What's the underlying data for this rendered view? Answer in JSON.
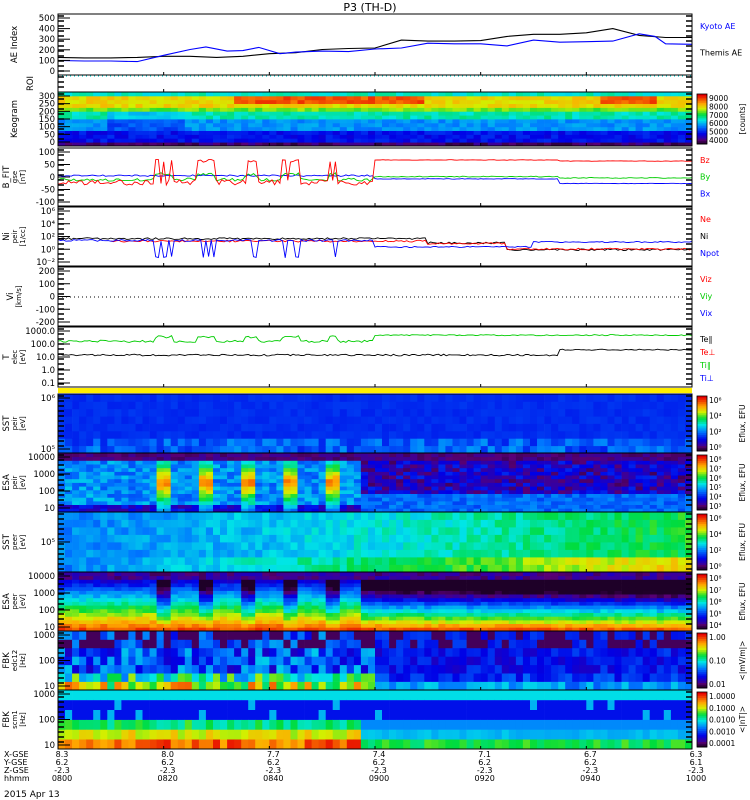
{
  "title": "P3 (TH-D)",
  "chart_data": {
    "type": "multi-panel time series and spectrogram",
    "title": "P3 (TH-D)",
    "date": "2015 Apr 13",
    "time_range_min": [
      0,
      120
    ],
    "panels": [
      {
        "id": "ae",
        "label": [
          "AE Index"
        ],
        "yticks": [
          "500",
          "400",
          "300",
          "200",
          "100",
          "0"
        ],
        "ylim": [
          -25,
          525
        ],
        "legend": [
          {
            "name": "Kyoto AE",
            "color": "#0000ff"
          },
          {
            "name": "Themis AE",
            "color": "#000000"
          }
        ],
        "series": [
          {
            "name": "Themis AE",
            "color": "#000000",
            "t": [
              0,
              5,
              10,
              15,
              20,
              25,
              30,
              35,
              40,
              45,
              50,
              55,
              60,
              65,
              70,
              75,
              80,
              85,
              90,
              95,
              100,
              105,
              110,
              115,
              120
            ],
            "values": [
              130,
              125,
              125,
              130,
              140,
              140,
              130,
              140,
              165,
              175,
              205,
              215,
              220,
              295,
              285,
              285,
              290,
              330,
              350,
              350,
              365,
              405,
              340,
              320,
              320
            ]
          },
          {
            "name": "Kyoto AE",
            "color": "#0000ff",
            "t": [
              0,
              5,
              10,
              15,
              20,
              25,
              28,
              32,
              35,
              38,
              42,
              45,
              50,
              55,
              60,
              65,
              70,
              75,
              80,
              85,
              90,
              95,
              100,
              105,
              110,
              113,
              115,
              120
            ],
            "values": [
              100,
              95,
              95,
              90,
              150,
              205,
              230,
              190,
              195,
              225,
              165,
              180,
              190,
              185,
              210,
              220,
              265,
              260,
              260,
              240,
              295,
              275,
              280,
              285,
              355,
              330,
              260,
              255
            ]
          }
        ]
      },
      {
        "id": "roi",
        "label": [
          "ROI"
        ],
        "yticks": []
      },
      {
        "id": "keo",
        "label": [
          "Keogram"
        ],
        "yticks": [
          "300",
          "250",
          "200",
          "150",
          "100",
          "50",
          "0"
        ],
        "colorbar": {
          "ticks": [
            "9000",
            "8000",
            "7000",
            "6000",
            "5000",
            "4000"
          ],
          "label": "[counts]"
        }
      },
      {
        "id": "b",
        "label": [
          "B_FIT",
          "gse",
          "[nT]"
        ],
        "yticks": [
          "100",
          "50",
          "0",
          "-50",
          "-100"
        ],
        "legend": [
          {
            "name": "Bz",
            "color": "#ff0000"
          },
          {
            "name": "By",
            "color": "#00cc00"
          },
          {
            "name": "Bx",
            "color": "#0000ff"
          }
        ]
      },
      {
        "id": "ni",
        "label": [
          "Ni",
          "peir",
          "[1/cc]"
        ],
        "yticks": [
          "10⁶",
          "10⁴",
          "10²",
          "10⁰",
          "10⁻²"
        ],
        "legend": [
          {
            "name": "Ne",
            "color": "#ff0000"
          },
          {
            "name": "Ni",
            "color": "#000000"
          },
          {
            "name": "Npot",
            "color": "#0000ff"
          }
        ]
      },
      {
        "id": "vi",
        "label": [
          "Vi",
          "[km/s]"
        ],
        "yticks": [
          "200",
          "100",
          "0",
          "-100",
          "-200"
        ],
        "legend": [
          {
            "name": "Viz",
            "color": "#ff0000"
          },
          {
            "name": "Viy",
            "color": "#00cc00"
          },
          {
            "name": "Vix",
            "color": "#0000ff"
          }
        ]
      },
      {
        "id": "t",
        "label": [
          "T",
          "elec",
          "[eV]"
        ],
        "yticks": [
          "1000.0",
          "100.0",
          "10.0",
          "1.0",
          "0.1"
        ],
        "legend": [
          {
            "name": "Te∥",
            "color": "#000000"
          },
          {
            "name": "Te⊥",
            "color": "#ff0000"
          },
          {
            "name": "Ti∥",
            "color": "#00cc00"
          },
          {
            "name": "Ti⊥",
            "color": "#0000ff"
          }
        ]
      },
      {
        "id": "sst1",
        "label": [
          "SST",
          "peir",
          "[eV]"
        ],
        "yticks": [
          "10⁶",
          "10⁵"
        ],
        "colorbar": {
          "ticks": [
            "10⁶",
            "10⁴",
            "10²",
            "10⁰"
          ],
          "label": "Eflux, EFU"
        }
      },
      {
        "id": "esa1",
        "label": [
          "ESA",
          "peir",
          "[eV]"
        ],
        "yticks": [
          "10000",
          "1000",
          "100",
          "10"
        ],
        "colorbar": {
          "ticks": [
            "10⁸",
            "10⁷",
            "10⁶",
            "10⁵",
            "10⁴",
            "10³"
          ],
          "label": "Eflux, EFU"
        }
      },
      {
        "id": "sst2",
        "label": [
          "SST",
          "peer",
          "[eV]"
        ],
        "yticks": [
          "10⁵"
        ],
        "colorbar": {
          "ticks": [
            "10⁶",
            "10⁴",
            "10²",
            "10⁰"
          ],
          "label": "Eflux, EFU"
        }
      },
      {
        "id": "esa2",
        "label": [
          "ESA",
          "peer",
          "[eV]"
        ],
        "yticks": [
          "10000",
          "1000",
          "100",
          "10"
        ],
        "colorbar": {
          "ticks": [
            "10⁸",
            "10⁷",
            "10⁶",
            "10⁵",
            "10⁴"
          ],
          "label": "Eflux, EFU"
        }
      },
      {
        "id": "fbk1",
        "label": [
          "FBK",
          "edc12",
          "[Hz]"
        ],
        "yticks": [
          "1000",
          "100",
          "10"
        ],
        "colorbar": {
          "ticks": [
            "1.00",
            "0.10",
            "0.01"
          ],
          "label": "<|mV/m|>"
        }
      },
      {
        "id": "fbk2",
        "label": [
          "FBK",
          "scm1",
          "[Hz]"
        ],
        "yticks": [
          "1000",
          "100",
          "10"
        ],
        "colorbar": {
          "ticks": [
            "1.0000",
            "0.1000",
            "0.0100",
            "0.0010",
            "0.0001"
          ],
          "label": "<|nT|>"
        }
      }
    ],
    "xaxis": {
      "row_labels": [
        "X-GSE",
        "Y-GSE",
        "Z-GSE",
        "hhmm"
      ],
      "columns": [
        [
          "8.3",
          "6.2",
          "-2.3",
          "0800"
        ],
        [
          "8.0",
          "6.2",
          "-2.3",
          "0820"
        ],
        [
          "7.7",
          "6.2",
          "-2.3",
          "0840"
        ],
        [
          "7.4",
          "6.2",
          "-2.3",
          "0900"
        ],
        [
          "7.1",
          "6.2",
          "-2.3",
          "0920"
        ],
        [
          "6.7",
          "6.2",
          "-2.3",
          "0940"
        ],
        [
          "6.3",
          "6.1",
          "-2.3",
          "1000"
        ]
      ]
    }
  }
}
